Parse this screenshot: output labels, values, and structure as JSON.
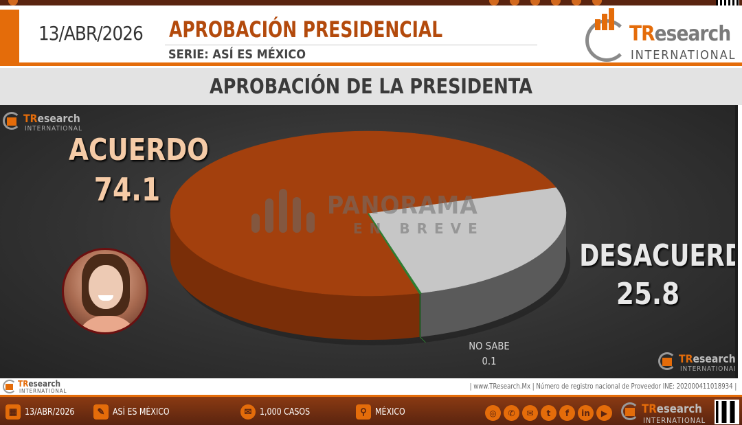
{
  "header": {
    "date": "13/ABR/2026",
    "title": "APROBACIÓN PRESIDENCIAL",
    "subtitle": "SERIE: ASÍ ES MÉXICO",
    "brand_tr": "TR",
    "brand_rest": "esearch",
    "brand_sub": "INTERNATIONAL"
  },
  "section_title": "APROBACIÓN DE LA PRESIDENTA",
  "watermark": {
    "name_tr": "TR",
    "name_rest": "esearch",
    "sub": "INTERNATIONAL",
    "panorama_title": "PANORAMA",
    "panorama_sub": "EN BREVE"
  },
  "chart_data": {
    "type": "pie",
    "title": "APROBACIÓN DE LA PRESIDENTA",
    "categories": [
      "ACUERDO",
      "DESACUERDO",
      "NO SABE"
    ],
    "values": [
      74.1,
      25.8,
      0.1
    ],
    "labels": [
      "ACUERDO",
      "DESACUERDO",
      "NO SABE"
    ],
    "value_labels": [
      "74.1",
      "25.8",
      "0.1"
    ],
    "colors": [
      "#a3400d",
      "#c6c6c6",
      "#2e7d32"
    ],
    "side_colors": [
      "#7a2e08",
      "#5a5a5a",
      "#1b5e20"
    ],
    "style": "3d"
  },
  "footer_info": {
    "registry": "| www.TResearch.Mx | Número de registro nacional de Proveedor INE: 202000411018934 |"
  },
  "footer": {
    "date": "13/ABR/2026",
    "series": "ASÍ ES MÉXICO",
    "cases": "1,000 CASOS",
    "location": "MÉXICO",
    "icons": [
      "calendar-icon",
      "report-icon",
      "chat-icon",
      "map-pin-icon"
    ],
    "social_icons": [
      "globe-icon",
      "whatsapp-icon",
      "email-icon",
      "twitter-icon",
      "facebook-icon",
      "linkedin-icon",
      "youtube-icon"
    ],
    "brand_tr": "TR",
    "brand_rest": "esearch",
    "brand_sub": "INTERNATIONAL"
  }
}
